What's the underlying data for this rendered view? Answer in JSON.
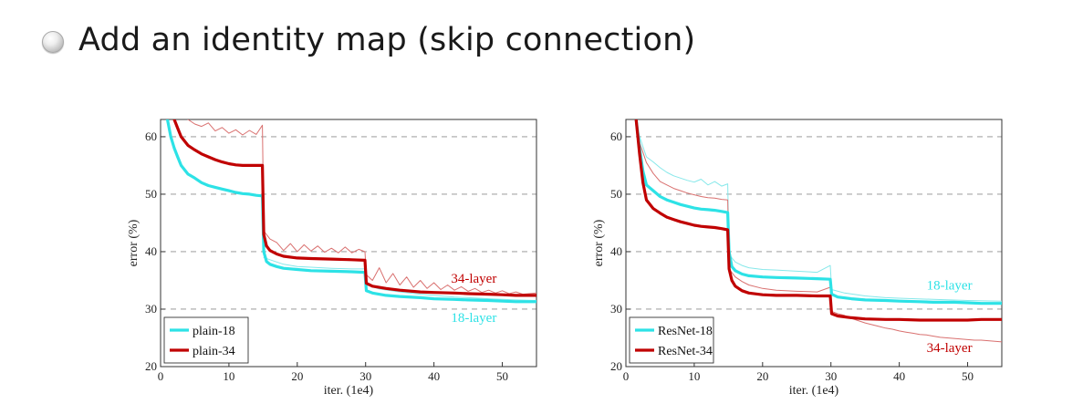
{
  "slide": {
    "title": "Add an identity map (skip connection)"
  },
  "colors": {
    "cyan": "#2de2e6",
    "red": "#c00000",
    "cyan_thin": "#86e8ea",
    "red_thin": "#d9706f"
  },
  "chart_data": [
    {
      "type": "line",
      "id": "plain",
      "xlabel": "iter. (1e4)",
      "ylabel": "error (%)",
      "xlim": [
        0,
        55
      ],
      "ylim": [
        20,
        63
      ],
      "xticks": [
        0,
        10,
        20,
        30,
        40,
        50
      ],
      "yticks": [
        20,
        30,
        40,
        50,
        60
      ],
      "grid": "horizontal-dashed",
      "legend": {
        "placement": "bottom-left"
      },
      "series": [
        {
          "name": "plain-18",
          "color": "#2de2e6",
          "style": "thick",
          "x": [
            1,
            1.5,
            2,
            2.5,
            3,
            4,
            5,
            6,
            7,
            8,
            9,
            10,
            11,
            12,
            13,
            14,
            14.9,
            15.1,
            15.5,
            16,
            17,
            18,
            20,
            22,
            25,
            28,
            29.9,
            30.1,
            31,
            33,
            35,
            38,
            40,
            43,
            45,
            48,
            50,
            52,
            55
          ],
          "y": [
            63,
            60,
            58,
            56.5,
            55,
            53.5,
            52.8,
            52,
            51.5,
            51.2,
            50.9,
            50.6,
            50.3,
            50.1,
            50.0,
            49.8,
            49.7,
            40,
            38.3,
            37.8,
            37.4,
            37.1,
            36.9,
            36.7,
            36.6,
            36.5,
            36.4,
            33.2,
            32.8,
            32.4,
            32.2,
            32.0,
            31.8,
            31.7,
            31.6,
            31.5,
            31.4,
            31.3,
            31.3
          ]
        },
        {
          "name": "plain-34",
          "color": "#c00000",
          "style": "thick",
          "x": [
            2,
            2.5,
            3,
            4,
            5,
            6,
            7,
            8,
            9,
            10,
            11,
            12,
            13,
            14,
            14.9,
            15.1,
            15.5,
            16,
            17,
            18,
            20,
            22,
            25,
            28,
            29.9,
            30.1,
            31,
            33,
            35,
            38,
            40,
            43,
            45,
            48,
            50,
            52,
            55
          ],
          "y": [
            63,
            61.5,
            60,
            58.5,
            57.7,
            57,
            56.5,
            56.0,
            55.6,
            55.3,
            55.1,
            55.0,
            55.0,
            55.0,
            55.0,
            43,
            41,
            40.2,
            39.6,
            39.2,
            38.9,
            38.8,
            38.7,
            38.6,
            38.5,
            34.5,
            34.0,
            33.6,
            33.3,
            33.0,
            32.9,
            32.8,
            32.7,
            32.6,
            32.5,
            32.4,
            32.4
          ]
        },
        {
          "name": "plain-18 (thin)",
          "color": "#86e8ea",
          "style": "thin",
          "x": [
            15.1,
            16,
            18,
            20,
            22,
            25,
            28,
            29.9,
            30.1,
            32,
            35,
            38,
            40,
            43,
            45,
            48,
            50,
            52,
            55
          ],
          "y": [
            39,
            38.6,
            37.8,
            37.4,
            37.3,
            37.1,
            37.0,
            37.0,
            34.2,
            33.5,
            33.0,
            32.6,
            32.4,
            32.1,
            32.0,
            31.8,
            31.7,
            31.6,
            31.5
          ]
        },
        {
          "name": "plain-34 (thin)",
          "color": "#d9706f",
          "style": "thin",
          "x": [
            4,
            5,
            6,
            7,
            8,
            9,
            10,
            11,
            12,
            13,
            14,
            14.9,
            15.1,
            16,
            17,
            18,
            19,
            20,
            21,
            22,
            23,
            24,
            25,
            26,
            27,
            28,
            29,
            29.9,
            30.1,
            31,
            32,
            33,
            34,
            35,
            36,
            37,
            38,
            39,
            40,
            41,
            42,
            43,
            44,
            45,
            46,
            47,
            48,
            49,
            50,
            51,
            52,
            53,
            55
          ],
          "y": [
            63,
            62.2,
            61.8,
            62.4,
            61.0,
            61.6,
            60.6,
            61.2,
            60.3,
            61.1,
            60.4,
            62.0,
            43.6,
            42.2,
            41.6,
            40.2,
            41.4,
            40.0,
            41.2,
            40.1,
            41.0,
            39.9,
            40.6,
            39.8,
            40.8,
            39.8,
            40.4,
            40.0,
            36.0,
            35.0,
            37.2,
            34.6,
            36.2,
            34.2,
            35.6,
            33.8,
            35.0,
            33.6,
            34.6,
            33.4,
            34.2,
            33.3,
            33.9,
            33.1,
            33.6,
            32.9,
            33.3,
            32.8,
            33.2,
            32.7,
            33.0,
            32.6,
            32.8
          ]
        }
      ],
      "annotations": [
        {
          "text": "34-layer",
          "color": "#c00000",
          "x": 42.5,
          "y": 34.6
        },
        {
          "text": "18-layer",
          "color": "#2de2e6",
          "x": 42.5,
          "y": 27.8
        }
      ]
    },
    {
      "type": "line",
      "id": "resnet",
      "xlabel": "iter. (1e4)",
      "ylabel": "error (%)",
      "xlim": [
        0,
        55
      ],
      "ylim": [
        20,
        63
      ],
      "xticks": [
        0,
        10,
        20,
        30,
        40,
        50
      ],
      "yticks": [
        20,
        30,
        40,
        50,
        60
      ],
      "grid": "horizontal-dashed",
      "legend": {
        "placement": "bottom-left"
      },
      "series": [
        {
          "name": "ResNet-18",
          "color": "#2de2e6",
          "style": "thick",
          "x": [
            1.5,
            2,
            2.5,
            3,
            4,
            5,
            6,
            7,
            8,
            9,
            10,
            11,
            12,
            13,
            14,
            14.9,
            15.1,
            15.5,
            16,
            17,
            18,
            20,
            22,
            25,
            28,
            29.9,
            30.1,
            31,
            33,
            35,
            38,
            40,
            43,
            45,
            48,
            50,
            52,
            55
          ],
          "y": [
            63,
            58,
            54,
            51.6,
            50.6,
            49.6,
            49.0,
            48.6,
            48.2,
            47.9,
            47.6,
            47.4,
            47.3,
            47.2,
            47.0,
            46.8,
            40,
            37.4,
            36.7,
            36.1,
            35.8,
            35.6,
            35.5,
            35.4,
            35.3,
            35.2,
            32.6,
            32.1,
            31.8,
            31.6,
            31.5,
            31.4,
            31.3,
            31.2,
            31.2,
            31.1,
            31.0,
            31.0
          ]
        },
        {
          "name": "ResNet-34",
          "color": "#c00000",
          "style": "thick",
          "x": [
            1.5,
            2,
            2.5,
            3,
            4,
            5,
            6,
            7,
            8,
            9,
            10,
            11,
            12,
            13,
            14,
            14.9,
            15.1,
            15.5,
            16,
            17,
            18,
            20,
            22,
            25,
            28,
            29.9,
            30.1,
            31,
            33,
            35,
            38,
            40,
            43,
            45,
            48,
            50,
            52,
            55
          ],
          "y": [
            63,
            57,
            52,
            49,
            47.5,
            46.7,
            46.0,
            45.6,
            45.2,
            44.9,
            44.6,
            44.4,
            44.3,
            44.2,
            44.0,
            43.8,
            37,
            35,
            34.0,
            33.2,
            32.8,
            32.5,
            32.4,
            32.4,
            32.3,
            32.3,
            29.2,
            28.8,
            28.5,
            28.3,
            28.2,
            28.2,
            28.1,
            28.1,
            28.1,
            28.1,
            28.2,
            28.2
          ]
        },
        {
          "name": "ResNet-18 (thin)",
          "color": "#86e8ea",
          "style": "thin",
          "x": [
            1.5,
            2,
            3,
            4,
            5,
            6,
            7,
            8,
            9,
            10,
            11,
            12,
            13,
            14,
            14.9,
            15.1,
            16,
            17,
            18,
            20,
            22,
            25,
            28,
            29.9,
            30.1,
            32,
            35,
            38,
            40,
            45,
            50,
            55
          ],
          "y": [
            63,
            60,
            56.5,
            55.6,
            54.6,
            53.8,
            53.2,
            52.8,
            52.4,
            52.1,
            52.6,
            51.6,
            52.2,
            51.4,
            51.8,
            39.5,
            38.2,
            37.6,
            37.2,
            36.9,
            36.8,
            36.6,
            36.4,
            37.6,
            33.4,
            32.8,
            32.3,
            32.0,
            31.9,
            31.7,
            31.5,
            31.4
          ]
        },
        {
          "name": "ResNet-34 (thin)",
          "color": "#d9706f",
          "style": "thin",
          "x": [
            1.5,
            2,
            3,
            4,
            5,
            6,
            7,
            8,
            9,
            10,
            11,
            12,
            13,
            14,
            14.9,
            15.1,
            16,
            17,
            18,
            20,
            22,
            25,
            28,
            29.9,
            30.1,
            31,
            32,
            33,
            34,
            35,
            36,
            37,
            38,
            39,
            40,
            41,
            42,
            43,
            44,
            45,
            46,
            47,
            48,
            49,
            50,
            51,
            52,
            53,
            54,
            55
          ],
          "y": [
            63,
            59,
            55.5,
            53.6,
            52.2,
            51.6,
            51.0,
            50.6,
            50.2,
            49.9,
            49.6,
            49.4,
            49.3,
            49.1,
            49.0,
            37,
            35.6,
            34.8,
            34.2,
            33.6,
            33.3,
            33.1,
            33.0,
            33.8,
            29.6,
            29.2,
            28.9,
            28.4,
            28.0,
            27.6,
            27.3,
            27.0,
            26.7,
            26.5,
            26.2,
            26.0,
            25.8,
            25.6,
            25.5,
            25.3,
            25.1,
            25.0,
            24.9,
            24.8,
            24.7,
            24.6,
            24.6,
            24.5,
            24.4,
            24.3
          ]
        }
      ],
      "annotations": [
        {
          "text": "18-layer",
          "color": "#2de2e6",
          "x": 44,
          "y": 33.4
        },
        {
          "text": "34-layer",
          "color": "#c00000",
          "x": 44,
          "y": 22.5
        }
      ]
    }
  ]
}
